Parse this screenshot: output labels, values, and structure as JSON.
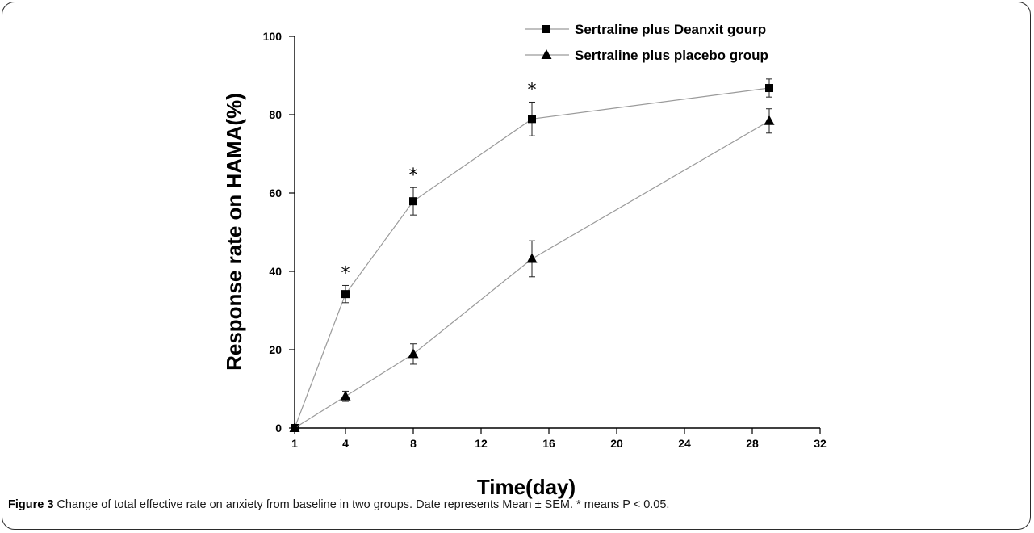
{
  "caption": {
    "label": "Figure 3",
    "text": "Change of total effective rate on anxiety from baseline in two groups. Date represents Mean ± SEM. * means P < 0.05."
  },
  "chart_data": {
    "type": "line",
    "title": "",
    "xlabel": "Time(day)",
    "ylabel": "Response rate on HAMA(%)",
    "xlim": [
      1,
      32
    ],
    "ylim": [
      0,
      100
    ],
    "xticks": [
      1,
      4,
      8,
      12,
      16,
      20,
      24,
      28,
      32
    ],
    "yticks": [
      0,
      20,
      40,
      60,
      80,
      100
    ],
    "grid": false,
    "legend_position": "top-right",
    "colors": {
      "line": "#9a9a9a",
      "marker": "#000000",
      "axis": "#000000"
    },
    "series": [
      {
        "name": "Sertraline plus Deanxit gourp",
        "marker": "square",
        "x": [
          1,
          4,
          8,
          15,
          29
        ],
        "y": [
          0,
          34.2,
          57.9,
          78.9,
          86.8
        ],
        "err": [
          0,
          2.2,
          3.5,
          4.3,
          2.3
        ],
        "sig": [
          false,
          true,
          true,
          true,
          false
        ]
      },
      {
        "name": "Sertraline plus placebo group",
        "marker": "triangle",
        "x": [
          1,
          4,
          8,
          15,
          29
        ],
        "y": [
          0,
          8.1,
          18.9,
          43.2,
          78.4
        ],
        "err": [
          0,
          1.3,
          2.6,
          4.6,
          3.1
        ],
        "sig": [
          false,
          false,
          false,
          false,
          false
        ]
      }
    ],
    "significance_symbol": "*"
  }
}
